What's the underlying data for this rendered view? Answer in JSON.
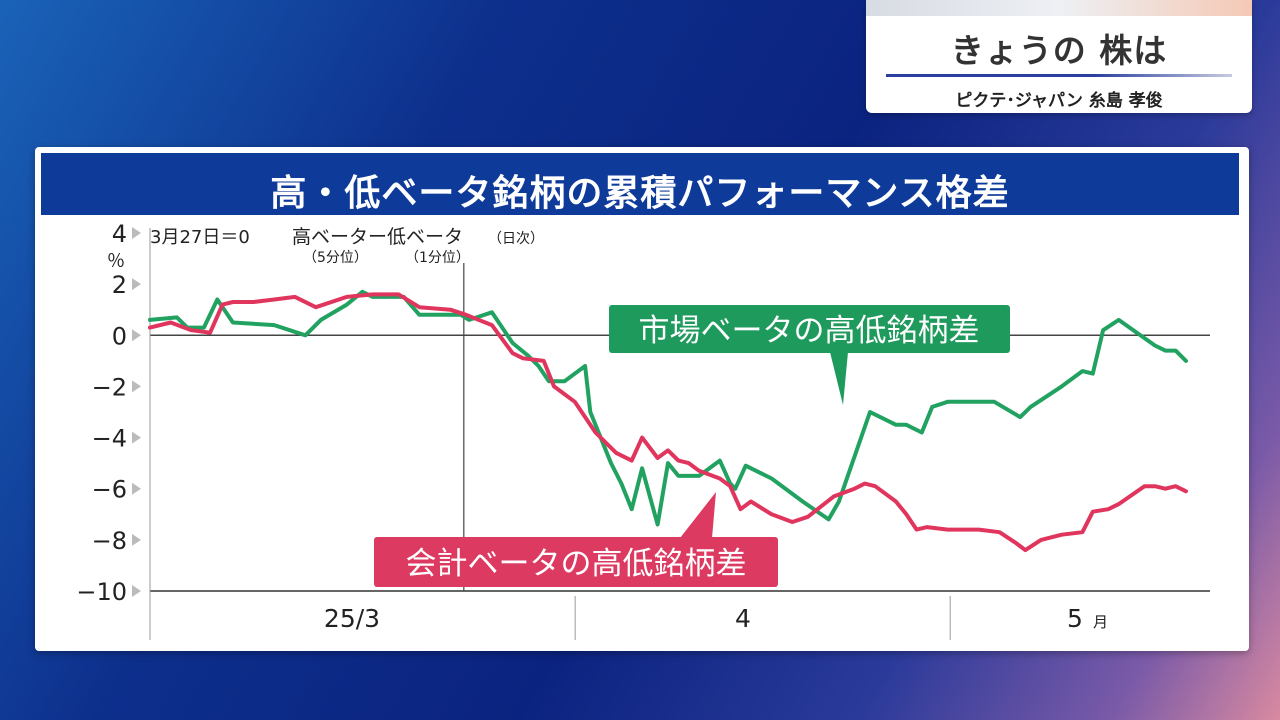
{
  "corner": {
    "title": "きょうの 株は",
    "subtitle": "ピクテ･ジャパン 糸島 孝俊"
  },
  "chart_data": {
    "type": "line",
    "title": "高・低ベータ銘柄の累積パフォーマンス格差",
    "note": "3月27日＝0",
    "legend_high": "高ベーター低ベータ",
    "legend_high_sub": "（5分位）",
    "legend_low_sub": "（1分位）",
    "legend_freq": "（日次）",
    "ylabel": "％",
    "ylim": [
      -10,
      4
    ],
    "yticks": [
      "4",
      "2",
      "0",
      "−2",
      "−4",
      "−6",
      "−8",
      "−10"
    ],
    "xticks": [
      {
        "label": "25/3",
        "pos": 0.18
      },
      {
        "label": "4",
        "pos": 0.57
      },
      {
        "label": "5",
        "suffix": "月",
        "pos": 0.88
      }
    ],
    "series": [
      {
        "name": "市場ベータの高低銘柄差",
        "color": "#22a261",
        "x": [
          0,
          0.026,
          0.036,
          0.052,
          0.065,
          0.08,
          0.12,
          0.15,
          0.165,
          0.19,
          0.205,
          0.215,
          0.245,
          0.26,
          0.28,
          0.3,
          0.308,
          0.33,
          0.35,
          0.365,
          0.375,
          0.385,
          0.4,
          0.42,
          0.425,
          0.445,
          0.455,
          0.465,
          0.475,
          0.49,
          0.5,
          0.51,
          0.53,
          0.55,
          0.56,
          0.565,
          0.575,
          0.6,
          0.63,
          0.655,
          0.665,
          0.695,
          0.72,
          0.73,
          0.745,
          0.755,
          0.77,
          0.8,
          0.815,
          0.84,
          0.85,
          0.88,
          0.9,
          0.91,
          0.92,
          0.935,
          0.97,
          0.98,
          0.99,
          1.0
        ],
        "values": [
          0.6,
          0.7,
          0.3,
          0.3,
          1.4,
          0.5,
          0.4,
          0,
          0.6,
          1.2,
          1.7,
          1.5,
          1.5,
          0.8,
          0.8,
          0.8,
          0.6,
          0.9,
          -0.3,
          -0.8,
          -1.2,
          -1.8,
          -1.8,
          -1.2,
          -3.0,
          -5.0,
          -5.8,
          -6.8,
          -5.2,
          -7.4,
          -5.0,
          -5.5,
          -5.5,
          -4.9,
          -5.8,
          -6.0,
          -5.1,
          -5.6,
          -6.5,
          -7.2,
          -6.5,
          -3.0,
          -3.5,
          -3.5,
          -3.8,
          -2.8,
          -2.6,
          -2.6,
          -2.6,
          -3.2,
          -2.8,
          -2.0,
          -1.4,
          -1.5,
          0.2,
          0.6,
          -0.4,
          -0.6,
          -0.6,
          -1.0
        ]
      },
      {
        "name": "会計ベータの高低銘柄差",
        "color": "#e0365d",
        "x": [
          0,
          0.02,
          0.04,
          0.058,
          0.07,
          0.08,
          0.1,
          0.12,
          0.14,
          0.16,
          0.19,
          0.215,
          0.24,
          0.26,
          0.29,
          0.305,
          0.33,
          0.35,
          0.36,
          0.38,
          0.39,
          0.41,
          0.43,
          0.44,
          0.45,
          0.465,
          0.475,
          0.49,
          0.5,
          0.51,
          0.52,
          0.53,
          0.55,
          0.56,
          0.57,
          0.58,
          0.6,
          0.62,
          0.635,
          0.66,
          0.68,
          0.69,
          0.7,
          0.72,
          0.73,
          0.74,
          0.75,
          0.77,
          0.8,
          0.82,
          0.835,
          0.845,
          0.86,
          0.88,
          0.9,
          0.91,
          0.925,
          0.935,
          0.96,
          0.97,
          0.98,
          0.99,
          1.0
        ],
        "values": [
          0.3,
          0.5,
          0.2,
          0.1,
          1.2,
          1.3,
          1.3,
          1.4,
          1.5,
          1.1,
          1.5,
          1.6,
          1.6,
          1.1,
          1.0,
          0.8,
          0.4,
          -0.7,
          -0.9,
          -1.0,
          -2.0,
          -2.6,
          -3.8,
          -4.2,
          -4.6,
          -4.9,
          -4.0,
          -4.8,
          -4.5,
          -4.9,
          -5.0,
          -5.3,
          -5.6,
          -5.9,
          -6.8,
          -6.5,
          -7.0,
          -7.3,
          -7.1,
          -6.3,
          -6.0,
          -5.8,
          -5.9,
          -6.5,
          -7.0,
          -7.6,
          -7.5,
          -7.6,
          -7.6,
          -7.7,
          -8.1,
          -8.4,
          -8.0,
          -7.8,
          -7.7,
          -6.9,
          -6.8,
          -6.6,
          -5.9,
          -5.9,
          -6.0,
          -5.9,
          -6.1
        ]
      }
    ],
    "zero_line": 0,
    "divider_x": 0.245
  },
  "labels": {
    "market": "市場ベータの高低銘柄差",
    "accounting": "会計ベータの高低銘柄差"
  }
}
